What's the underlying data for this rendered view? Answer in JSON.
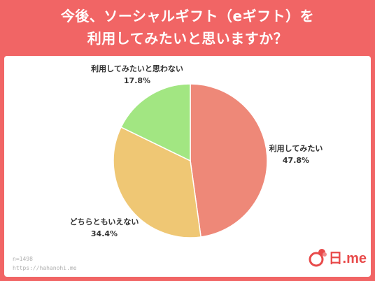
{
  "header": {
    "line1": "今後、ソーシャルギフト（eギフト）を",
    "line2": "利用してみたいと思いますか？"
  },
  "colors": {
    "background": "#f16565",
    "slice_yes": "#ee8878",
    "slice_neutral": "#efc774",
    "slice_no": "#a2e682"
  },
  "chart_data": {
    "type": "pie",
    "title": "今後、ソーシャルギフト（eギフト）を利用してみたいと思いますか？",
    "slices": [
      {
        "label": "利用してみたい",
        "value": 47.8,
        "value_label": "47.8%",
        "color": "#ee8878"
      },
      {
        "label": "どちらともいえない",
        "value": 34.4,
        "value_label": "34.4%",
        "color": "#efc774"
      },
      {
        "label": "利用してみたいと思わない",
        "value": 17.8,
        "value_label": "17.8%",
        "color": "#a2e682"
      }
    ],
    "start": "12 o'clock",
    "direction": "clockwise"
  },
  "footer": {
    "n": "n=1498",
    "url": "https://hahanohi.me"
  },
  "logo": {
    "text": "日.me"
  }
}
